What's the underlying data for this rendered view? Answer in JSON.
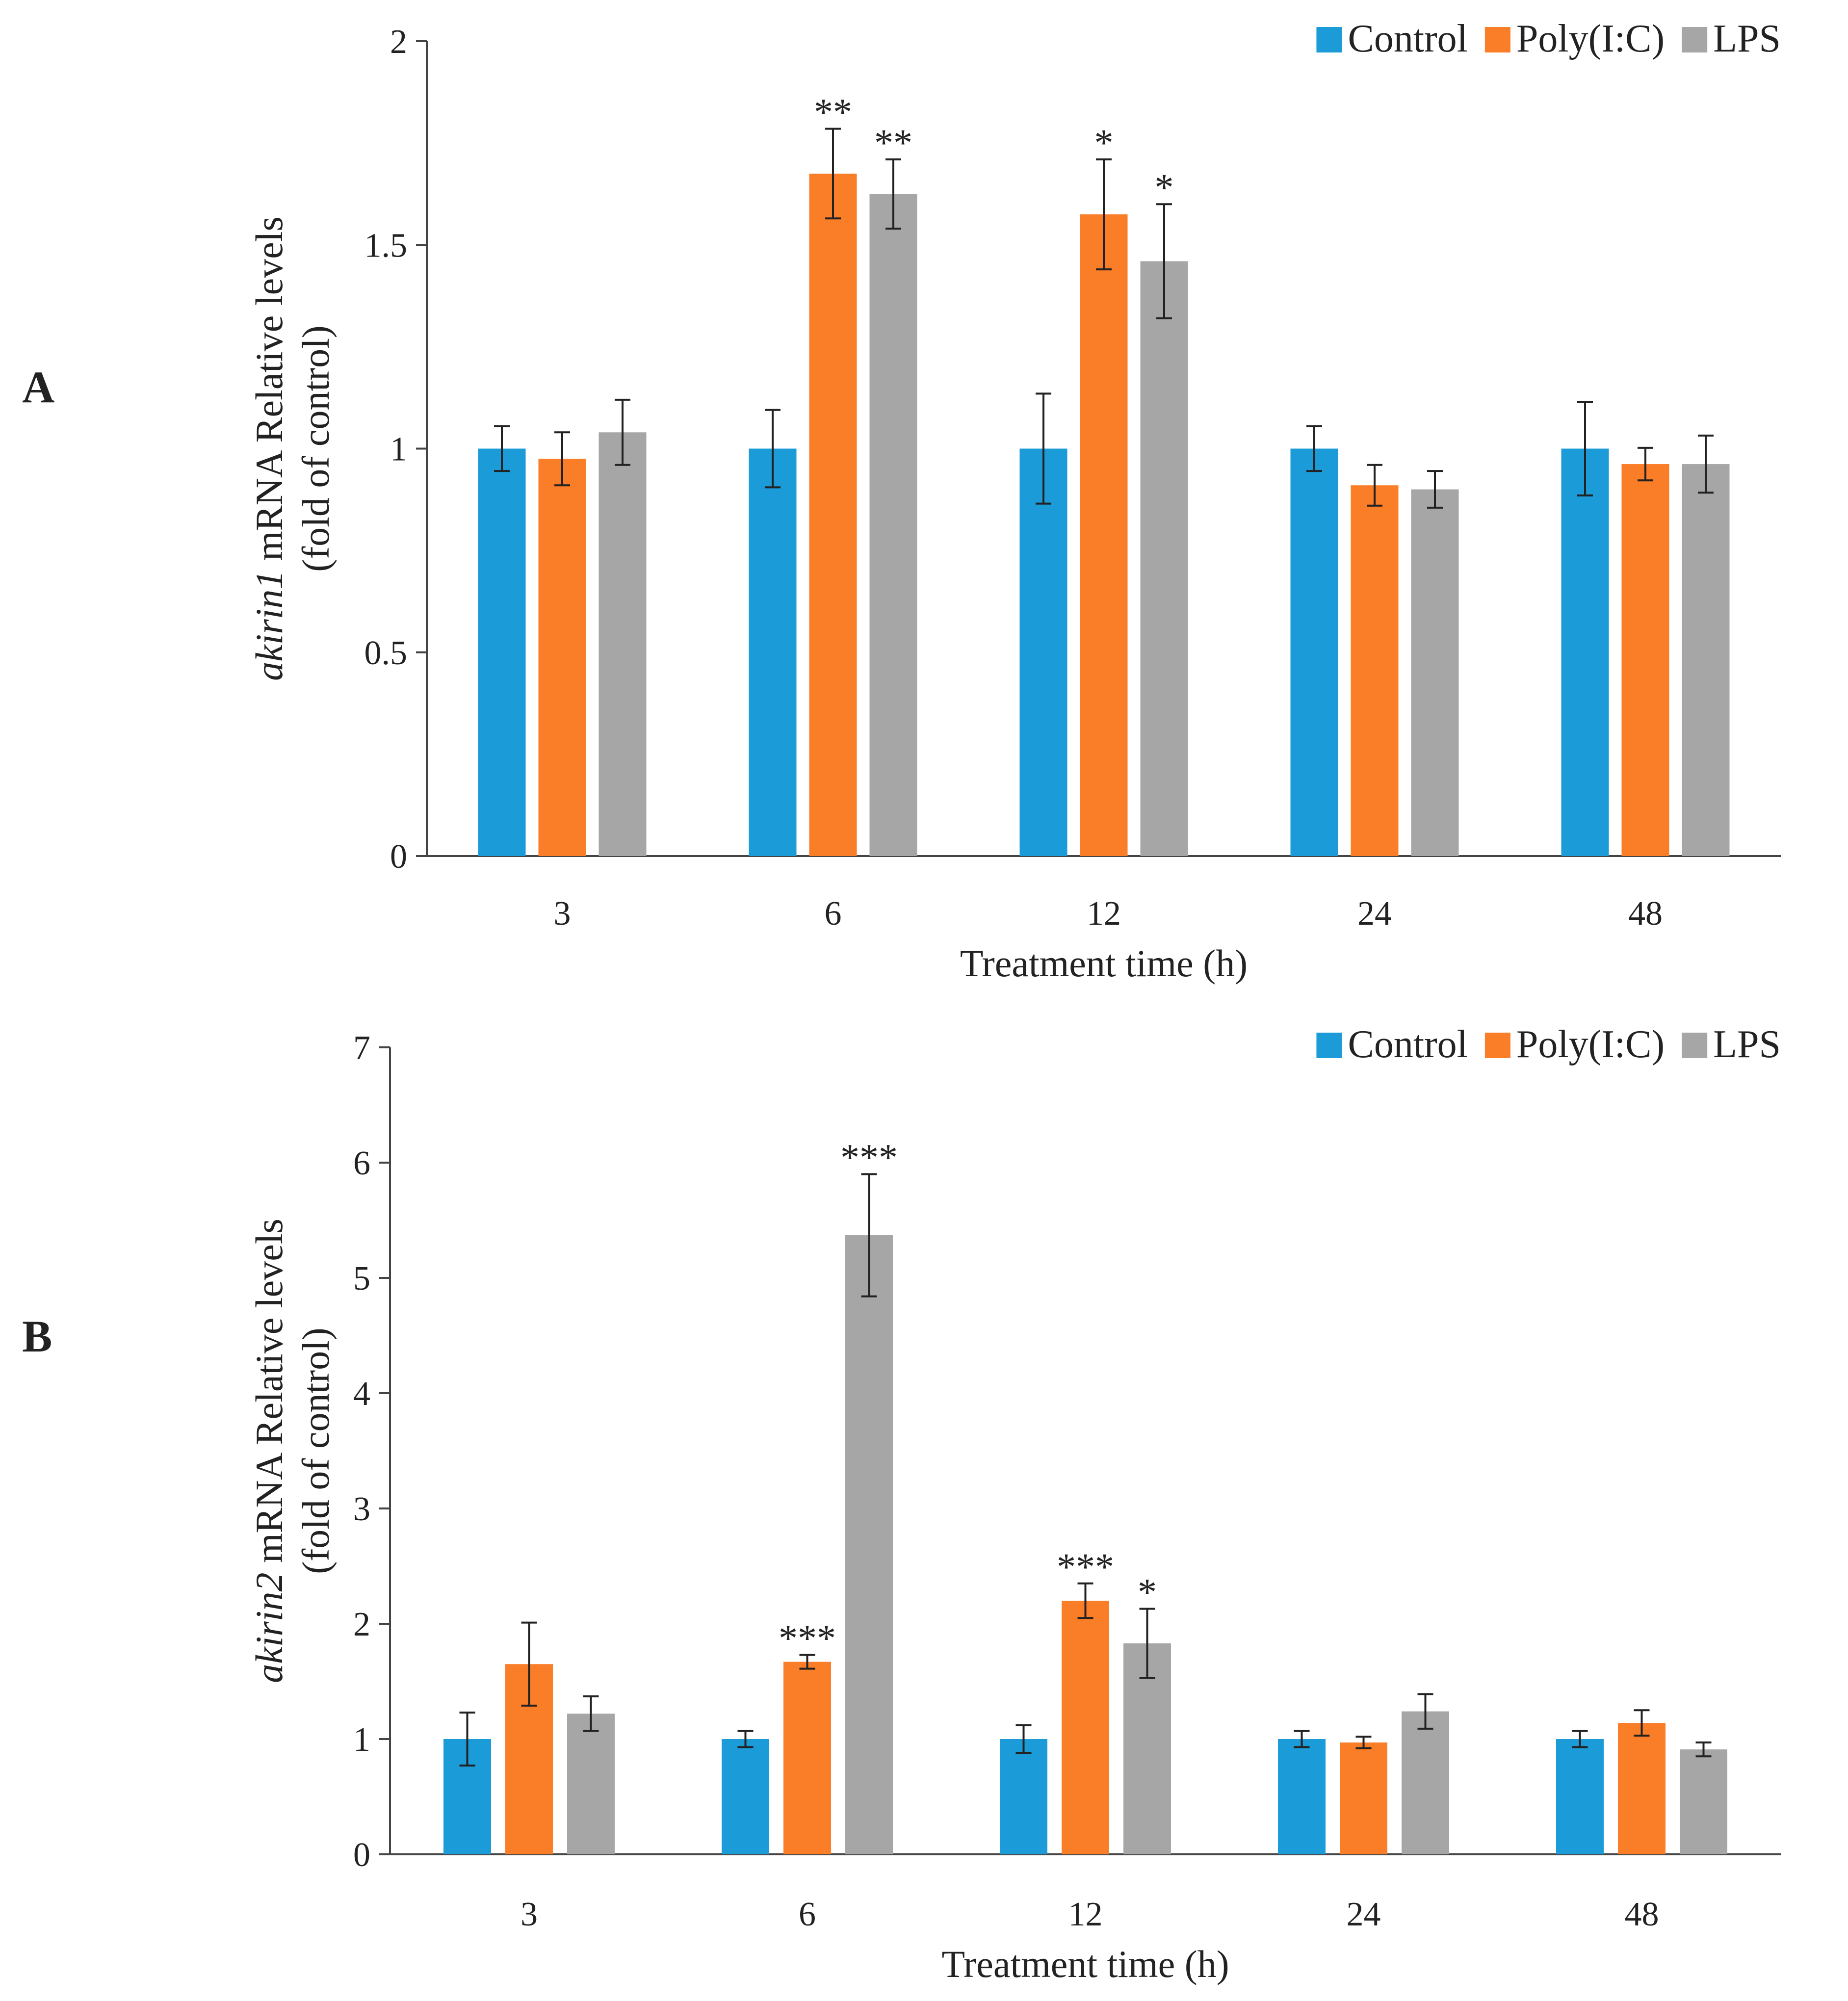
{
  "chart_data": [
    {
      "type": "bar",
      "panel_label": "A",
      "title": "",
      "ylabel_gene": "akirin1",
      "ylabel_rest": " mRNA Relative levels",
      "ylabel_line2": "(fold of control)",
      "xlabel": "Treatment time (h)",
      "ylim": [
        0,
        2
      ],
      "yticks": [
        "0",
        "0.5",
        "1",
        "1.5",
        "2"
      ],
      "ytick_values": [
        0,
        0.5,
        1,
        1.5,
        2
      ],
      "categories": [
        "3",
        "6",
        "12",
        "24",
        "48"
      ],
      "legend_position": "top-right",
      "series": [
        {
          "name": "Control",
          "color": "#1B9BD7",
          "values": [
            1.0,
            1.0,
            1.0,
            1.0,
            1.0
          ],
          "errors": [
            0.055,
            0.095,
            0.135,
            0.055,
            0.115
          ],
          "sig": [
            "",
            "",
            "",
            "",
            ""
          ]
        },
        {
          "name": "Poly(I:C)",
          "color": "#FA7D28",
          "values": [
            0.975,
            1.675,
            1.575,
            0.91,
            0.962
          ],
          "errors": [
            0.065,
            0.11,
            0.135,
            0.05,
            0.04
          ],
          "sig": [
            "",
            "**",
            "*",
            "",
            ""
          ]
        },
        {
          "name": "LPS",
          "color": "#A6A6A6",
          "values": [
            1.04,
            1.625,
            1.46,
            0.9,
            0.962
          ],
          "errors": [
            0.08,
            0.085,
            0.14,
            0.045,
            0.07
          ],
          "sig": [
            "",
            "**",
            "*",
            "",
            ""
          ]
        }
      ]
    },
    {
      "type": "bar",
      "panel_label": "B",
      "title": "",
      "ylabel_gene": "akirin2",
      "ylabel_rest": " mRNA Relative levels",
      "ylabel_line2": "(fold of control)",
      "xlabel": "Treatment time (h)",
      "ylim": [
        0,
        7
      ],
      "yticks": [
        "0",
        "1",
        "2",
        "3",
        "4",
        "5",
        "6",
        "7"
      ],
      "ytick_values": [
        0,
        1,
        2,
        3,
        4,
        5,
        6,
        7
      ],
      "categories": [
        "3",
        "6",
        "12",
        "24",
        "48"
      ],
      "legend_position": "top-right",
      "series": [
        {
          "name": "Control",
          "color": "#1B9BD7",
          "values": [
            1.0,
            1.0,
            1.0,
            1.0,
            1.0
          ],
          "errors": [
            0.23,
            0.07,
            0.12,
            0.07,
            0.07
          ],
          "sig": [
            "",
            "",
            "",
            "",
            ""
          ]
        },
        {
          "name": "Poly(I:C)",
          "color": "#FA7D28",
          "values": [
            1.65,
            1.67,
            2.2,
            0.97,
            1.14
          ],
          "errors": [
            0.36,
            0.06,
            0.15,
            0.05,
            0.11
          ],
          "sig": [
            "",
            "***",
            "***",
            "",
            ""
          ]
        },
        {
          "name": "LPS",
          "color": "#A6A6A6",
          "values": [
            1.22,
            5.37,
            1.83,
            1.24,
            0.91
          ],
          "errors": [
            0.15,
            0.53,
            0.3,
            0.15,
            0.06
          ],
          "sig": [
            "",
            "***",
            "*",
            "",
            ""
          ]
        }
      ]
    }
  ]
}
